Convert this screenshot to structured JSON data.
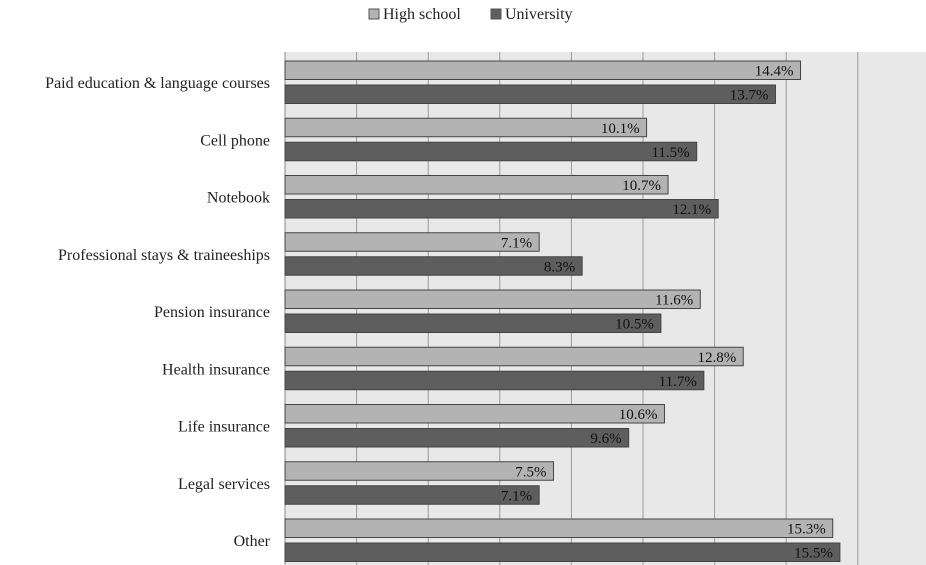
{
  "chart_data": {
    "type": "bar",
    "orientation": "horizontal",
    "categories": [
      "Paid education & language courses",
      "Cell phone",
      "Notebook",
      "Professional stays & traineeships",
      "Pension insurance",
      "Health insurance",
      "Life insurance",
      "Legal services",
      "Other"
    ],
    "series": [
      {
        "name": "High school",
        "color": "#b3b3b3",
        "values": [
          14.4,
          10.1,
          10.7,
          7.1,
          11.6,
          12.8,
          10.6,
          7.5,
          15.3
        ],
        "labels": [
          "14.4%",
          "10.1%",
          "10.7%",
          "7.1%",
          "11.6%",
          "12.8%",
          "10.6%",
          "7.5%",
          "15.3%"
        ]
      },
      {
        "name": "University",
        "color": "#5e5e5e",
        "values": [
          13.7,
          11.5,
          12.1,
          8.3,
          10.5,
          11.7,
          9.6,
          7.1,
          15.5
        ],
        "labels": [
          "13.7%",
          "11.5%",
          "12.1%",
          "8.3%",
          "10.5%",
          "11.7%",
          "9.6%",
          "7.1%",
          "15.5%"
        ]
      }
    ],
    "xlim": [
      0,
      16
    ],
    "grid": true,
    "legend_position": "top-center",
    "title": "",
    "xlabel": "",
    "ylabel": ""
  }
}
